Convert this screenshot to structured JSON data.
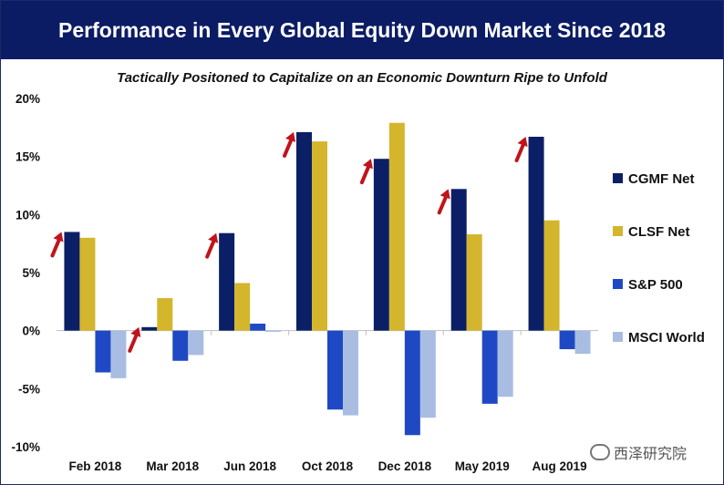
{
  "header": {
    "title": "Performance in Every Global Equity Down Market Since 2018"
  },
  "subtitle": "Tactically Positoned to Capitalize on an Economic Downturn Ripe to Unfold",
  "watermark": "西泽研究院",
  "chart_data": {
    "type": "bar",
    "categories": [
      "Feb 2018",
      "Mar 2018",
      "Jun 2018",
      "Oct 2018",
      "Dec 2018",
      "May 2019",
      "Aug 2019"
    ],
    "ylim": [
      -10,
      20
    ],
    "yticks": [
      20,
      15,
      10,
      5,
      0,
      -5,
      -10
    ],
    "ytick_labels": [
      "20%",
      "15%",
      "10%",
      "5%",
      "0%",
      "-5%",
      "-10%"
    ],
    "legend_position": "right",
    "series": [
      {
        "name": "CGMF Net",
        "color": "#0b1f66",
        "values": [
          8.5,
          0.3,
          8.4,
          17.1,
          14.8,
          12.2,
          16.7
        ]
      },
      {
        "name": "CLSF Net",
        "color": "#d4b62c",
        "values": [
          8.0,
          2.8,
          4.1,
          16.3,
          17.9,
          8.3,
          9.5
        ]
      },
      {
        "name": "S&P 500",
        "color": "#1f49c4",
        "values": [
          -3.6,
          -2.6,
          0.6,
          -6.8,
          -9.0,
          -6.3,
          -1.6
        ]
      },
      {
        "name": "MSCI World",
        "color": "#a9bde3",
        "values": [
          -4.1,
          -2.1,
          -0.1,
          -7.3,
          -7.5,
          -5.7,
          -2.0
        ]
      }
    ],
    "arrow_color": "#c0141b"
  }
}
